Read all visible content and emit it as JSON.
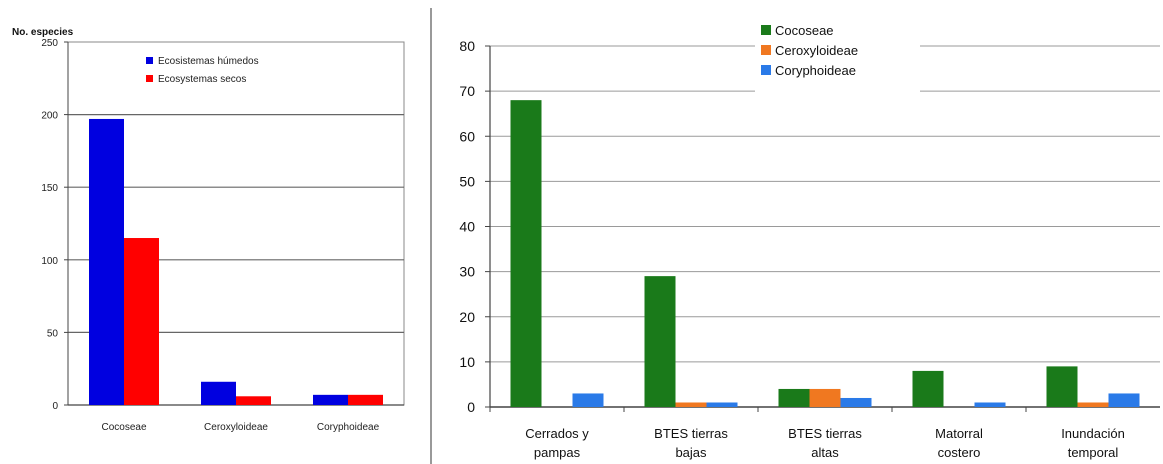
{
  "chart_data": [
    {
      "type": "bar",
      "ylabel": "No. especies",
      "ylim": [
        0,
        250
      ],
      "yticks": [
        "0",
        "50",
        "100",
        "150",
        "200",
        "250"
      ],
      "categories": [
        "Cocoseae",
        "Ceroxyloideae",
        "Coryphoideae"
      ],
      "series": [
        {
          "name": "Ecosistemas húmedos",
          "color": "#0000e0",
          "values": [
            197,
            16,
            7
          ]
        },
        {
          "name": "Ecosystemas secos",
          "color": "#ff0000",
          "values": [
            115,
            6,
            7
          ]
        }
      ],
      "legend_position": "top-right",
      "grid": true
    },
    {
      "type": "bar",
      "ylim": [
        0,
        80
      ],
      "yticks": [
        "0",
        "10",
        "20",
        "30",
        "40",
        "50",
        "60",
        "70",
        "80"
      ],
      "categories": [
        "Cerrados y pampas",
        "BTES tierras bajas",
        "BTES tierras altas",
        "Matorral costero",
        "Inundación temporal"
      ],
      "category_lines": [
        [
          "Cerrados y",
          "pampas"
        ],
        [
          "BTES tierras",
          "bajas"
        ],
        [
          "BTES tierras",
          "altas"
        ],
        [
          "Matorral",
          "costero"
        ],
        [
          "Inundación",
          "temporal"
        ]
      ],
      "series": [
        {
          "name": "Cocoseae",
          "color": "#1a7a1a",
          "values": [
            68,
            29,
            4,
            8,
            9
          ]
        },
        {
          "name": "Ceroxyloideae",
          "color": "#f07820",
          "values": [
            0,
            1,
            4,
            0,
            1
          ]
        },
        {
          "name": "Coryphoideae",
          "color": "#2a7ae8",
          "values": [
            3,
            1,
            2,
            1,
            3
          ]
        }
      ],
      "legend_position": "top-center",
      "grid": true
    }
  ]
}
